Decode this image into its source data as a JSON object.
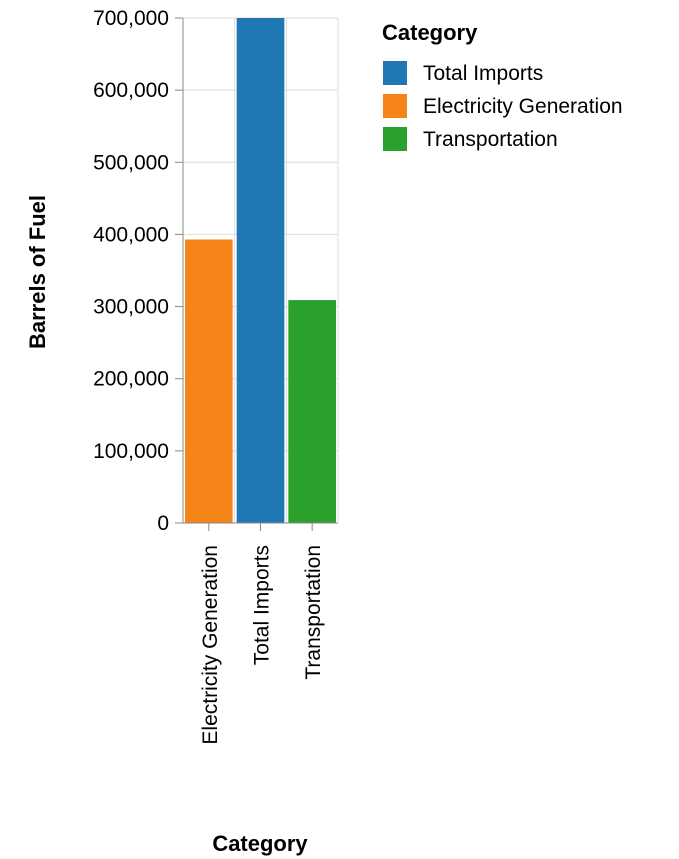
{
  "chart_data": {
    "type": "bar",
    "categories": [
      "Electricity Generation",
      "Total Imports",
      "Transportation"
    ],
    "values": [
      393000,
      700000,
      309000
    ],
    "colors": [
      "#f58518",
      "#1f77b4",
      "#2ca02c"
    ],
    "xlabel": "Category",
    "ylabel": "Barrels of Fuel",
    "ylim": [
      0,
      700000
    ],
    "yticks": [
      0,
      100000,
      200000,
      300000,
      400000,
      500000,
      600000,
      700000
    ],
    "ytick_labels": [
      "0",
      "100,000",
      "200,000",
      "300,000",
      "400,000",
      "500,000",
      "600,000",
      "700,000"
    ],
    "grid": true,
    "legend": {
      "title": "Category",
      "placement": "top-right",
      "entries": [
        {
          "label": "Total Imports",
          "color": "#1f77b4"
        },
        {
          "label": "Electricity Generation",
          "color": "#f58518"
        },
        {
          "label": "Transportation",
          "color": "#2ca02c"
        }
      ]
    }
  }
}
